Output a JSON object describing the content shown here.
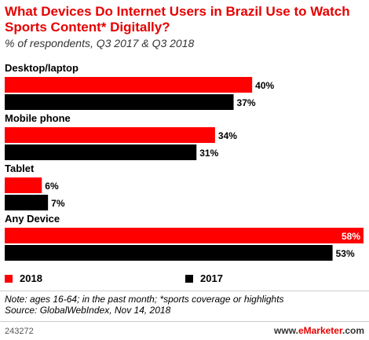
{
  "chart_data": {
    "type": "bar",
    "orientation": "horizontal",
    "title": "What Devices Do Internet Users in Brazil Use to Watch Sports Content* Digitally?",
    "subtitle": "% of respondents, Q3 2017 & Q3 2018",
    "categories": [
      "Desktop/laptop",
      "Mobile phone",
      "Tablet",
      "Any Device"
    ],
    "series": [
      {
        "name": "2018",
        "color": "#ff0000",
        "values": [
          40,
          34,
          6,
          58
        ],
        "labels": [
          "40%",
          "34%",
          "6%",
          "58%"
        ]
      },
      {
        "name": "2017",
        "color": "#000000",
        "values": [
          37,
          31,
          7,
          53
        ],
        "labels": [
          "37%",
          "31%",
          "7%",
          "53%"
        ]
      }
    ],
    "xlim": [
      0,
      58
    ],
    "grid": false,
    "legend": "bottom-left"
  },
  "note": "Note: ages 16-64; in the past month; *sports coverage or highlights",
  "source": "Source: GlobalWebIndex, Nov 14, 2018",
  "chart_id": "243272",
  "brand": {
    "prefix": "www.",
    "name": "eMarketer",
    "suffix": ".com"
  }
}
